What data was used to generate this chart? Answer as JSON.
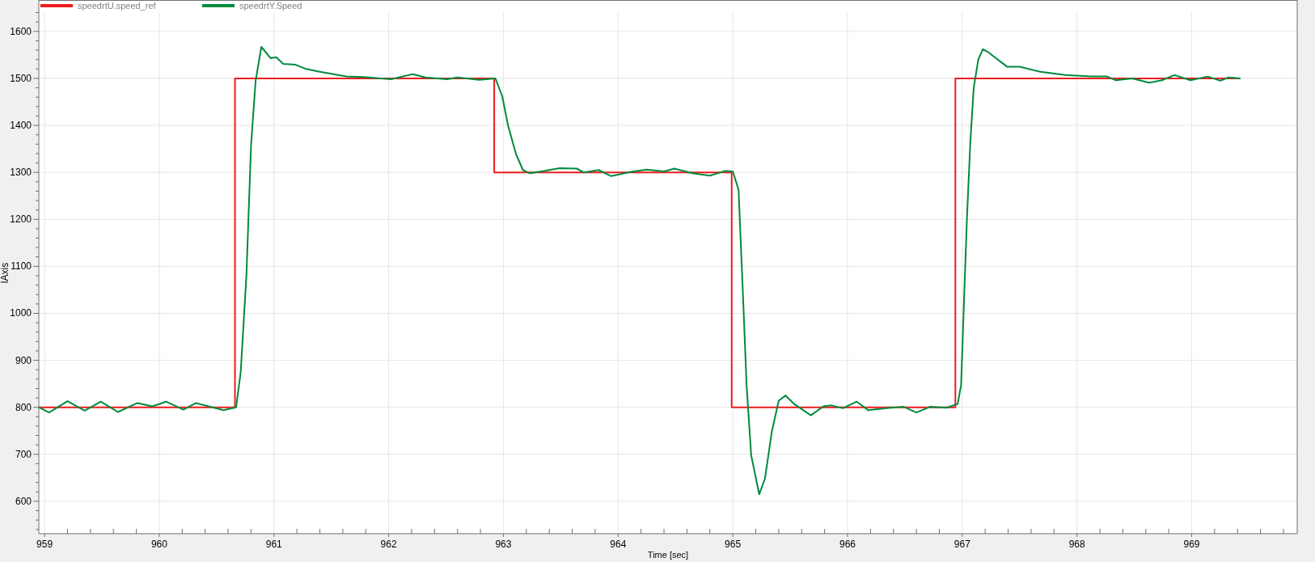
{
  "chart_data": {
    "type": "line",
    "xlabel": "Time [sec]",
    "ylabel": "lAxis",
    "xlim": [
      958.95,
      969.92
    ],
    "ylim": [
      531,
      1641
    ],
    "xticks": [
      959,
      {
        "value": 959.2,
        "label": null
      },
      {
        "value": 959.4,
        "label": null
      },
      {
        "value": 959.6,
        "label": null
      },
      {
        "value": 959.8,
        "label": null
      },
      960,
      {
        "value": 960.2,
        "label": null
      },
      {
        "value": 960.4,
        "label": null
      },
      {
        "value": 960.6,
        "label": null
      },
      {
        "value": 960.8,
        "label": null
      },
      961,
      {
        "value": 961.2,
        "label": null
      },
      {
        "value": 961.4,
        "label": null
      },
      {
        "value": 961.6,
        "label": null
      },
      {
        "value": 961.8,
        "label": null
      },
      962,
      {
        "value": 962.2,
        "label": null
      },
      {
        "value": 962.4,
        "label": null
      },
      {
        "value": 962.6,
        "label": null
      },
      {
        "value": 962.8,
        "label": null
      },
      963,
      {
        "value": 963.2,
        "label": null
      },
      {
        "value": 963.4,
        "label": null
      },
      {
        "value": 963.6,
        "label": null
      },
      {
        "value": 963.8,
        "label": null
      },
      964,
      {
        "value": 964.2,
        "label": null
      },
      {
        "value": 964.4,
        "label": null
      },
      {
        "value": 964.6,
        "label": null
      },
      {
        "value": 964.8,
        "label": null
      },
      965,
      {
        "value": 965.2,
        "label": null
      },
      {
        "value": 965.4,
        "label": null
      },
      {
        "value": 965.6,
        "label": null
      },
      {
        "value": 965.8,
        "label": null
      },
      966,
      {
        "value": 966.2,
        "label": null
      },
      {
        "value": 966.4,
        "label": null
      },
      {
        "value": 966.6,
        "label": null
      },
      {
        "value": 966.8,
        "label": null
      },
      967,
      {
        "value": 967.2,
        "label": null
      },
      {
        "value": 967.4,
        "label": null
      },
      {
        "value": 967.6,
        "label": null
      },
      {
        "value": 967.8,
        "label": null
      },
      968,
      {
        "value": 968.2,
        "label": null
      },
      {
        "value": 968.4,
        "label": null
      },
      {
        "value": 968.6,
        "label": null
      },
      {
        "value": 968.8,
        "label": null
      },
      969,
      {
        "value": 969.2,
        "label": null
      },
      {
        "value": 969.4,
        "label": null
      },
      {
        "value": 969.6,
        "label": null
      },
      {
        "value": 969.8,
        "label": null
      }
    ],
    "yticks": [
      {
        "value": 540,
        "label": null
      },
      {
        "value": 560,
        "label": null
      },
      {
        "value": 580,
        "label": null
      },
      600,
      {
        "value": 620,
        "label": null
      },
      {
        "value": 640,
        "label": null
      },
      {
        "value": 660,
        "label": null
      },
      {
        "value": 680,
        "label": null
      },
      700,
      {
        "value": 720,
        "label": null
      },
      {
        "value": 740,
        "label": null
      },
      {
        "value": 760,
        "label": null
      },
      {
        "value": 780,
        "label": null
      },
      800,
      {
        "value": 820,
        "label": null
      },
      {
        "value": 840,
        "label": null
      },
      {
        "value": 860,
        "label": null
      },
      {
        "value": 880,
        "label": null
      },
      900,
      {
        "value": 920,
        "label": null
      },
      {
        "value": 940,
        "label": null
      },
      {
        "value": 960,
        "label": null
      },
      {
        "value": 980,
        "label": null
      },
      1000,
      {
        "value": 1020,
        "label": null
      },
      {
        "value": 1040,
        "label": null
      },
      {
        "value": 1060,
        "label": null
      },
      {
        "value": 1080,
        "label": null
      },
      1100,
      {
        "value": 1120,
        "label": null
      },
      {
        "value": 1140,
        "label": null
      },
      {
        "value": 1160,
        "label": null
      },
      {
        "value": 1180,
        "label": null
      },
      1200,
      {
        "value": 1220,
        "label": null
      },
      {
        "value": 1240,
        "label": null
      },
      {
        "value": 1260,
        "label": null
      },
      {
        "value": 1280,
        "label": null
      },
      1300,
      {
        "value": 1320,
        "label": null
      },
      {
        "value": 1340,
        "label": null
      },
      {
        "value": 1360,
        "label": null
      },
      {
        "value": 1380,
        "label": null
      },
      1400,
      {
        "value": 1420,
        "label": null
      },
      {
        "value": 1440,
        "label": null
      },
      {
        "value": 1460,
        "label": null
      },
      {
        "value": 1480,
        "label": null
      },
      1500,
      {
        "value": 1520,
        "label": null
      },
      {
        "value": 1540,
        "label": null
      },
      {
        "value": 1560,
        "label": null
      },
      {
        "value": 1580,
        "label": null
      },
      1600,
      {
        "value": 1620,
        "label": null
      },
      {
        "value": 1640,
        "label": null
      }
    ],
    "grid": true,
    "legend": "top left",
    "series": [
      {
        "name": "speedrtU.speed_ref",
        "type": "step",
        "color": "#ee1c1c",
        "x": [
          958.95,
          960.66,
          962.92,
          964.99,
          966.94,
          969.42
        ],
        "values": [
          800,
          1500,
          1300,
          800,
          1500,
          1500
        ]
      },
      {
        "name": "speedrtY.Speed",
        "color": "#008a3e",
        "x": [
          958.95,
          959.04,
          959.2,
          959.35,
          959.49,
          959.64,
          959.81,
          959.94,
          960.06,
          960.21,
          960.32,
          960.56,
          960.67,
          960.71,
          960.76,
          960.8,
          960.84,
          960.89,
          960.97,
          961.02,
          961.08,
          961.19,
          961.28,
          961.4,
          961.63,
          961.78,
          962.02,
          962.21,
          962.32,
          962.51,
          962.6,
          962.79,
          962.93,
          962.99,
          963.04,
          963.11,
          963.17,
          963.23,
          963.33,
          963.49,
          963.64,
          963.7,
          963.83,
          963.94,
          964.11,
          964.25,
          964.4,
          964.49,
          964.65,
          964.8,
          964.93,
          965.0,
          965.05,
          965.09,
          965.12,
          965.16,
          965.23,
          965.28,
          965.34,
          965.4,
          965.46,
          965.54,
          965.68,
          965.79,
          965.86,
          965.96,
          966.08,
          966.18,
          966.34,
          966.49,
          966.6,
          966.72,
          966.86,
          966.96,
          966.99,
          967.01,
          967.04,
          967.07,
          967.1,
          967.14,
          967.18,
          967.23,
          967.39,
          967.5,
          967.68,
          967.9,
          968.12,
          968.26,
          968.34,
          968.48,
          968.63,
          968.74,
          968.85,
          968.99,
          969.14,
          969.25,
          969.32,
          969.42
        ],
        "values": [
          800,
          789,
          813,
          793,
          812,
          790,
          809,
          802,
          812,
          795,
          809,
          794,
          800,
          875,
          1082,
          1357,
          1495,
          1567,
          1543,
          1545,
          1531,
          1529,
          1520,
          1514,
          1504,
          1503,
          1498,
          1509,
          1502,
          1498,
          1502,
          1497,
          1500,
          1462,
          1400,
          1339,
          1305,
          1298,
          1302,
          1309,
          1308,
          1300,
          1305,
          1292,
          1301,
          1306,
          1302,
          1308,
          1298,
          1293,
          1303,
          1302,
          1263,
          1030,
          847,
          698,
          615,
          648,
          748,
          814,
          825,
          806,
          783,
          802,
          804,
          798,
          812,
          794,
          798,
          801,
          789,
          801,
          799,
          807,
          847,
          989,
          1196,
          1362,
          1480,
          1540,
          1562,
          1555,
          1525,
          1525,
          1514,
          1507,
          1504,
          1504,
          1496,
          1500,
          1491,
          1496,
          1507,
          1496,
          1504,
          1495,
          1502,
          1500
        ]
      }
    ]
  }
}
